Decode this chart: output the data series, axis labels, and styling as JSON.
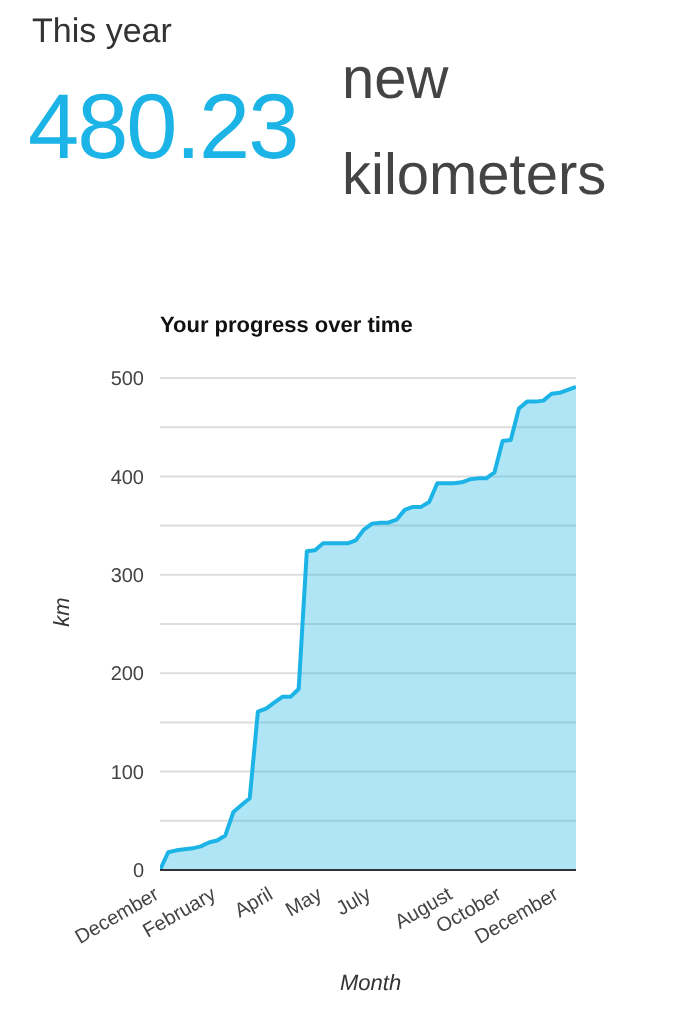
{
  "chart_data": [
    {
      "type": "other",
      "title": "This year",
      "annotations": [
        "480.23",
        "new",
        "kilometers"
      ]
    },
    {
      "type": "area",
      "title": "Your progress over time",
      "xlabel": "Month",
      "ylabel": "km",
      "categories": [
        "December",
        null,
        null,
        null,
        null,
        null,
        null,
        "February",
        null,
        null,
        null,
        null,
        null,
        null,
        "April",
        null,
        null,
        null,
        null,
        null,
        "May",
        null,
        null,
        null,
        null,
        null,
        "July",
        null,
        null,
        null,
        null,
        null,
        null,
        null,
        null,
        null,
        "August",
        null,
        null,
        null,
        null,
        null,
        "October",
        null,
        null,
        null,
        null,
        null,
        null,
        "December",
        null,
        null
      ],
      "series": [
        {
          "color": "#1cb4e6",
          "values": [
            0,
            18,
            20,
            21,
            22,
            24,
            28,
            30,
            35,
            59,
            66,
            73,
            161,
            164,
            170,
            176,
            176,
            184,
            324,
            325,
            332,
            332,
            332,
            332,
            335,
            346,
            352,
            353,
            353,
            356,
            366,
            369,
            369,
            374,
            393,
            393,
            393,
            394,
            397,
            398,
            398,
            404,
            436,
            437,
            469,
            476,
            476,
            477,
            484,
            485,
            488,
            491
          ]
        }
      ],
      "ylim": [
        0,
        500
      ],
      "yticks": [
        0,
        {
          "value": 50,
          "label": null
        },
        100,
        {
          "value": 150,
          "label": null
        },
        200,
        {
          "value": 250,
          "label": null
        },
        300,
        {
          "value": 350,
          "label": null
        },
        400,
        {
          "value": 450,
          "label": null
        },
        500
      ],
      "grid": "y",
      "marker": "none"
    }
  ]
}
